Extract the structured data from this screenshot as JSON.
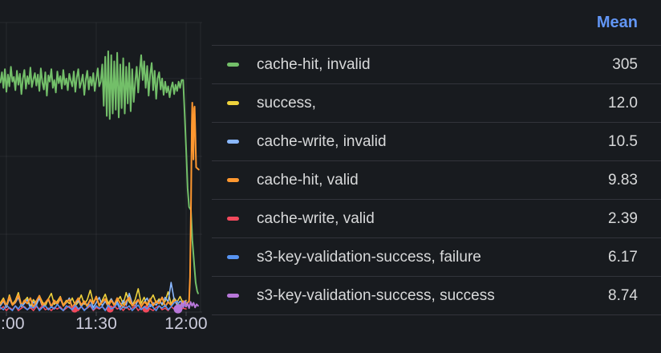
{
  "panel": {
    "background": "#181b1f",
    "text_color": "#d8d9da",
    "axis_text_color": "#ccccdc"
  },
  "legend": {
    "header": "Mean",
    "header_color": "#6296f5",
    "rows": [
      {
        "label": "cache-hit, invalid",
        "mean": "305",
        "color": "#73bf69"
      },
      {
        "label": "success,",
        "mean": "12.0",
        "color": "#eed23c"
      },
      {
        "label": "cache-write, invalid",
        "mean": "10.5",
        "color": "#8ab8ff"
      },
      {
        "label": "cache-hit, valid",
        "mean": "9.83",
        "color": "#ff9830"
      },
      {
        "label": "cache-write, valid",
        "mean": "2.39",
        "color": "#f2495c"
      },
      {
        "label": "s3-key-validation-success, failure",
        "mean": "6.17",
        "color": "#5794f2"
      },
      {
        "label": "s3-key-validation-success, success",
        "mean": "8.74",
        "color": "#b877d9"
      }
    ]
  },
  "chart_data": {
    "type": "line",
    "x_unit": "minutes after 11:00",
    "xlabel_ticks": [
      {
        "t": 0,
        "label": ":00"
      },
      {
        "t": 30,
        "label": "11:30"
      },
      {
        "t": 60,
        "label": "12:00"
      }
    ],
    "ylim": [
      0,
      372
    ],
    "y_gridlines": [
      100,
      200,
      300,
      372
    ],
    "grid": true,
    "legend_position": "right-table",
    "series": [
      {
        "name": "cache-hit, invalid",
        "color": "#73bf69",
        "width": 2,
        "mean": 305,
        "t0": -2,
        "dt": 0.5,
        "v": [
          295,
          308,
          288,
          312,
          283,
          305,
          290,
          315,
          296,
          302,
          285,
          310,
          292,
          306,
          280,
          300,
          311,
          287,
          303,
          293,
          314,
          289,
          299,
          307,
          291,
          305,
          284,
          313,
          295,
          286,
          308,
          278,
          304,
          296,
          312,
          288,
          298,
          282,
          309,
          294,
          303,
          287,
          311,
          292,
          300,
          285,
          306,
          297,
          290,
          309,
          283,
          301,
          312,
          288,
          295,
          305,
          279,
          298,
          310,
          286,
          302,
          291,
          307,
          284,
          299,
          313,
          290,
          296,
          318,
          265,
          328,
          252,
          335,
          248,
          330,
          255,
          322,
          260,
          333,
          250,
          318,
          262,
          326,
          255,
          315,
          268,
          320,
          258,
          312,
          270,
          295,
          315,
          282,
          308,
          330,
          298,
          322,
          288,
          316,
          278,
          305,
          320,
          285,
          310,
          274,
          300,
          308,
          286,
          300,
          279,
          296,
          282,
          290,
          276,
          288,
          295,
          280,
          292,
          284,
          296,
          288,
          298
        ],
        "tail": [
          [
            59,
            298
          ],
          [
            59.5,
            257
          ],
          [
            60,
            210
          ],
          [
            60.5,
            159
          ],
          [
            61,
            135
          ],
          [
            61.6,
            131
          ],
          [
            62.1,
            92
          ],
          [
            62.7,
            61
          ],
          [
            63.2,
            38
          ],
          [
            63.7,
            27
          ],
          [
            64,
            24
          ]
        ]
      },
      {
        "name": "success,",
        "color": "#eed23c",
        "width": 1.6,
        "mean": 12.0,
        "t0": -2,
        "dt": 1,
        "v": [
          12,
          18,
          8,
          22,
          10,
          15,
          25,
          9,
          14,
          19,
          7,
          16,
          11,
          21,
          13,
          8,
          17,
          24,
          10,
          14,
          20,
          9,
          15,
          11,
          18,
          8,
          13,
          22,
          10,
          16,
          28,
          12,
          18,
          9,
          15,
          23,
          11,
          17,
          8,
          14,
          20,
          10,
          25,
          13,
          9,
          16,
          30,
          11,
          19,
          8,
          15,
          22,
          12,
          17,
          9,
          14,
          26,
          10,
          18,
          13,
          20,
          11,
          15
        ]
      },
      {
        "name": "cache-write, invalid",
        "color": "#8ab8ff",
        "width": 1.6,
        "mean": 10.5,
        "t0": -2,
        "dt": 1,
        "v": [
          8,
          14,
          6,
          17,
          9,
          12,
          19,
          7,
          11,
          16,
          5,
          13,
          9,
          18,
          7,
          12,
          16,
          6,
          14,
          10,
          17,
          8,
          12,
          18,
          6,
          11,
          15,
          7,
          13,
          9,
          16,
          6,
          12,
          19,
          8,
          14,
          7,
          17,
          10,
          13,
          6,
          15,
          9,
          24,
          11,
          7,
          16,
          8,
          13,
          18,
          7,
          12,
          9,
          15,
          10,
          19,
          13,
          38,
          16,
          9,
          14,
          11,
          13
        ]
      },
      {
        "name": "cache-hit, valid",
        "color": "#ff9830",
        "width": 2,
        "mean": 9.83,
        "t0": -2,
        "dt": 1,
        "v": [
          10,
          16,
          7,
          20,
          9,
          13,
          22,
          8,
          15,
          11,
          18,
          6,
          14,
          21,
          9,
          12,
          17,
          7,
          15,
          10,
          19,
          8,
          13,
          16,
          6,
          12,
          18,
          9,
          14,
          7,
          16,
          11,
          20,
          8,
          13,
          17,
          7,
          15,
          9,
          18,
          11,
          6,
          14,
          19,
          8,
          12,
          16,
          7,
          13,
          10,
          17,
          8,
          14,
          11,
          19,
          7,
          13,
          9,
          15,
          12,
          8,
          14,
          10
        ],
        "tail": [
          [
            61,
            14
          ],
          [
            61.3,
            45
          ],
          [
            61.6,
            130
          ],
          [
            61.9,
            240
          ],
          [
            62.05,
            269
          ],
          [
            62.3,
            215
          ],
          [
            62.45,
            196
          ],
          [
            62.7,
            262
          ],
          [
            62.85,
            264
          ],
          [
            63.1,
            225
          ],
          [
            63.35,
            186
          ],
          [
            64.2,
            183
          ]
        ]
      },
      {
        "name": "cache-write, valid",
        "color": "#f2495c",
        "width": 1.6,
        "mean": 2.39,
        "t0": -2,
        "dt": 1,
        "v": [
          4,
          7,
          2,
          6,
          3,
          8,
          2,
          5,
          7,
          3,
          6,
          2,
          7,
          4,
          8,
          3,
          5,
          2,
          6,
          4,
          7,
          2,
          5,
          8,
          3,
          6,
          2,
          7,
          3,
          5,
          8,
          2,
          6,
          4,
          7,
          3,
          5,
          2,
          8,
          4,
          6,
          2,
          7,
          3,
          5,
          8,
          2,
          6,
          3,
          7,
          4,
          2,
          6,
          8,
          3,
          5,
          2,
          7,
          4,
          6,
          3,
          5,
          4
        ],
        "dots": [
          [
            22.8,
            4
          ],
          [
            34.6,
            4
          ],
          [
            46.6,
            4
          ]
        ],
        "dot_r": 4.5
      },
      {
        "name": "s3-key-validation-success, failure",
        "color": "#5794f2",
        "width": 1.6,
        "mean": 6.17,
        "t0": -2,
        "dt": 1,
        "v": [
          6,
          3,
          9,
          5,
          2,
          8,
          4,
          10,
          6,
          3,
          7,
          5,
          9,
          2,
          6,
          8,
          3,
          7,
          4,
          10,
          5,
          2,
          8,
          6,
          3,
          9,
          4,
          7,
          2,
          6,
          10,
          3,
          8,
          5,
          7,
          2,
          9,
          4,
          6,
          11,
          3,
          7,
          5,
          8,
          2,
          6,
          9,
          3,
          7,
          4,
          10,
          6,
          2,
          8,
          5,
          9,
          3,
          7,
          12,
          14,
          6,
          9,
          7
        ]
      },
      {
        "name": "s3-key-validation-success, success",
        "color": "#b877d9",
        "width": 2,
        "mean": 8.74,
        "t0": 57,
        "dt": 0.5,
        "v": [
          5,
          9,
          4,
          12,
          6,
          14,
          7,
          11,
          5,
          13,
          8,
          12,
          6,
          10,
          8
        ],
        "dots": [
          [
            57.3,
            4
          ]
        ],
        "dot_r": 5.5
      }
    ]
  }
}
